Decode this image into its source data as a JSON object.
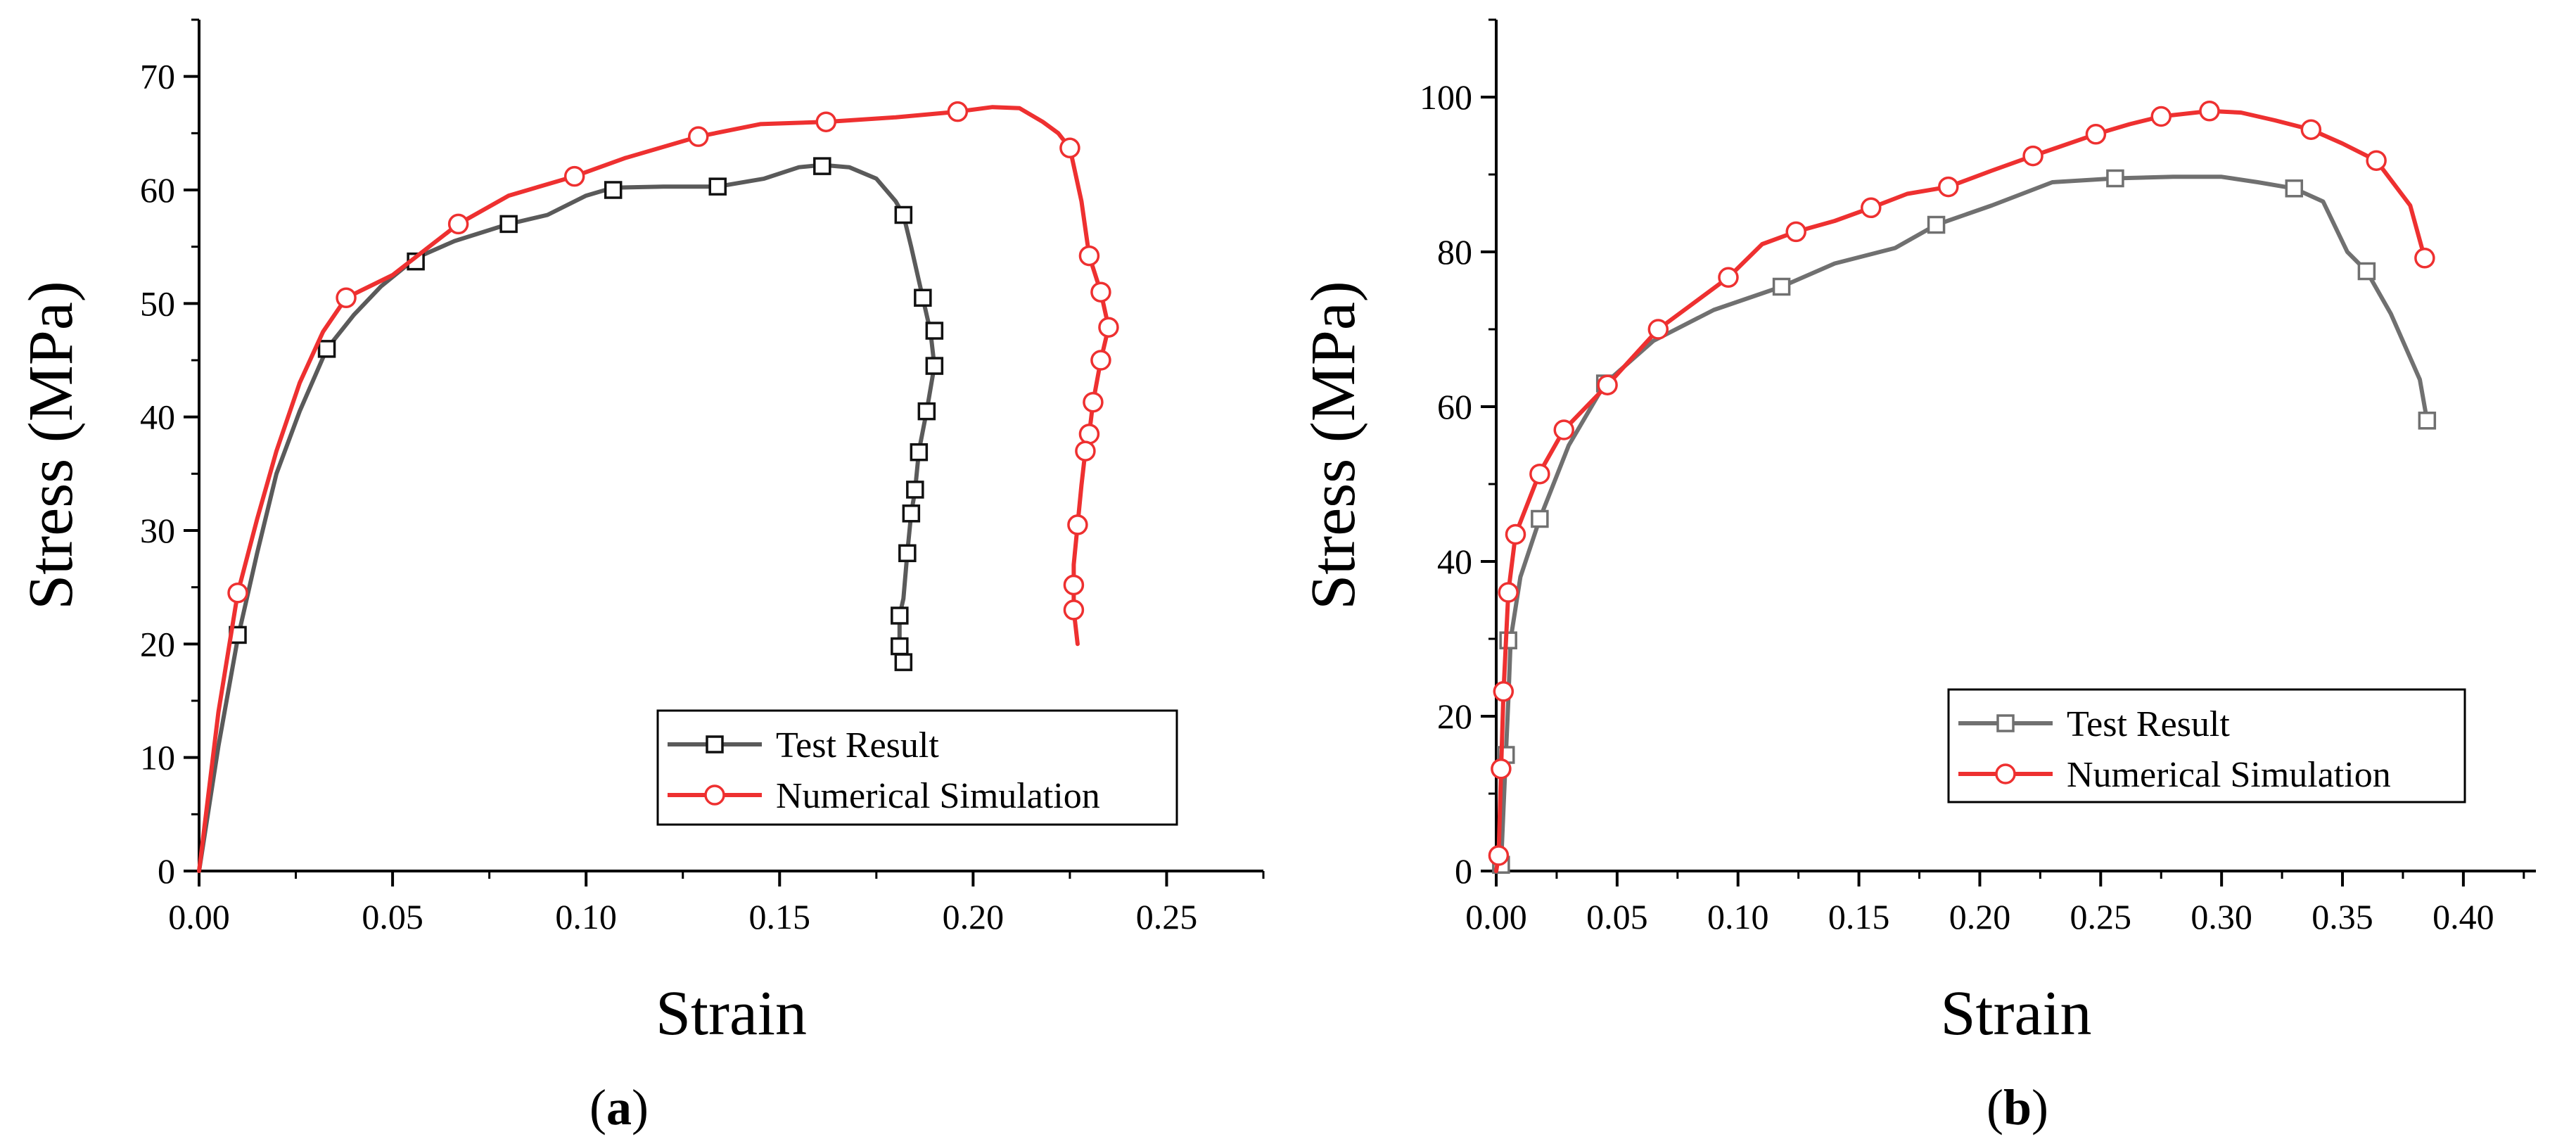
{
  "chart_data": [
    {
      "type": "line",
      "panel_label": "a",
      "title": "",
      "xlabel": "Strain",
      "ylabel": "Stress (MPa)",
      "xlim": [
        0,
        0.275
      ],
      "ylim": [
        0,
        75
      ],
      "xticks": [
        0.0,
        0.05,
        0.1,
        0.15,
        0.2,
        0.25
      ],
      "xtick_labels": [
        "0.00",
        "0.05",
        "0.10",
        "0.15",
        "0.20",
        "0.25"
      ],
      "yticks": [
        0,
        10,
        20,
        30,
        40,
        50,
        60,
        70
      ],
      "ytick_labels": [
        "0",
        "10",
        "20",
        "30",
        "40",
        "50",
        "60",
        "70"
      ],
      "grid": false,
      "legend_position": "bottom-right",
      "series": [
        {
          "name": "Test Result",
          "color": "#5a5a5a",
          "marker": "square",
          "line": [
            [
              0,
              0
            ],
            [
              0.005,
              11
            ],
            [
              0.01,
              20.5
            ],
            [
              0.015,
              28
            ],
            [
              0.02,
              35
            ],
            [
              0.026,
              40.5
            ],
            [
              0.033,
              46
            ],
            [
              0.04,
              49
            ],
            [
              0.047,
              51.5
            ],
            [
              0.056,
              54
            ],
            [
              0.066,
              55.5
            ],
            [
              0.08,
              57
            ],
            [
              0.09,
              57.8
            ],
            [
              0.1,
              59.5
            ],
            [
              0.107,
              60.2
            ],
            [
              0.12,
              60.3
            ],
            [
              0.134,
              60.3
            ],
            [
              0.146,
              61
            ],
            [
              0.155,
              62
            ],
            [
              0.161,
              62.2
            ],
            [
              0.168,
              62
            ],
            [
              0.175,
              61
            ],
            [
              0.18,
              59
            ],
            [
              0.182,
              57.8
            ],
            [
              0.184,
              55
            ],
            [
              0.187,
              50.5
            ],
            [
              0.189,
              47.5
            ],
            [
              0.19,
              44.5
            ],
            [
              0.188,
              40.5
            ],
            [
              0.186,
              37
            ],
            [
              0.185,
              33.5
            ],
            [
              0.184,
              31.5
            ],
            [
              0.183,
              28
            ],
            [
              0.182,
              24
            ],
            [
              0.181,
              22.5
            ],
            [
              0.181,
              19.8
            ],
            [
              0.182,
              18.2
            ]
          ],
          "markers": [
            [
              0.01,
              20.8
            ],
            [
              0.033,
              46
            ],
            [
              0.056,
              53.7
            ],
            [
              0.08,
              57
            ],
            [
              0.107,
              60
            ],
            [
              0.134,
              60.3
            ],
            [
              0.161,
              62.1
            ],
            [
              0.182,
              57.8
            ],
            [
              0.187,
              50.5
            ],
            [
              0.19,
              47.6
            ],
            [
              0.19,
              44.5
            ],
            [
              0.188,
              40.5
            ],
            [
              0.186,
              36.9
            ],
            [
              0.185,
              33.6
            ],
            [
              0.184,
              31.5
            ],
            [
              0.183,
              28
            ],
            [
              0.181,
              22.5
            ],
            [
              0.181,
              19.8
            ],
            [
              0.182,
              18.4
            ]
          ]
        },
        {
          "name": "Numerical Simulation",
          "color": "#ee3030",
          "marker": "circle",
          "line": [
            [
              0,
              0
            ],
            [
              0.005,
              14
            ],
            [
              0.01,
              24.5
            ],
            [
              0.015,
              31
            ],
            [
              0.02,
              37
            ],
            [
              0.026,
              43
            ],
            [
              0.032,
              47.5
            ],
            [
              0.038,
              50.5
            ],
            [
              0.05,
              52.5
            ],
            [
              0.067,
              57
            ],
            [
              0.08,
              59.5
            ],
            [
              0.097,
              61.2
            ],
            [
              0.11,
              62.8
            ],
            [
              0.129,
              64.7
            ],
            [
              0.145,
              65.8
            ],
            [
              0.162,
              66
            ],
            [
              0.18,
              66.4
            ],
            [
              0.196,
              66.9
            ],
            [
              0.205,
              67.3
            ],
            [
              0.212,
              67.2
            ],
            [
              0.218,
              66
            ],
            [
              0.222,
              65
            ],
            [
              0.225,
              63.7
            ],
            [
              0.228,
              59
            ],
            [
              0.23,
              54.2
            ],
            [
              0.233,
              51
            ],
            [
              0.235,
              47.9
            ],
            [
              0.233,
              45
            ],
            [
              0.231,
              41.3
            ],
            [
              0.23,
              38.5
            ],
            [
              0.229,
              37
            ],
            [
              0.228,
              34
            ],
            [
              0.227,
              30.5
            ],
            [
              0.226,
              27
            ],
            [
              0.226,
              25.2
            ],
            [
              0.226,
              23
            ],
            [
              0.227,
              20
            ]
          ],
          "markers": [
            [
              0.01,
              24.5
            ],
            [
              0.038,
              50.5
            ],
            [
              0.067,
              57
            ],
            [
              0.097,
              61.2
            ],
            [
              0.129,
              64.7
            ],
            [
              0.162,
              66
            ],
            [
              0.196,
              66.9
            ],
            [
              0.225,
              63.7
            ],
            [
              0.23,
              54.2
            ],
            [
              0.233,
              51
            ],
            [
              0.235,
              47.9
            ],
            [
              0.233,
              45
            ],
            [
              0.231,
              41.3
            ],
            [
              0.23,
              38.5
            ],
            [
              0.229,
              37
            ],
            [
              0.227,
              30.5
            ],
            [
              0.226,
              25.2
            ],
            [
              0.226,
              23
            ]
          ]
        }
      ]
    },
    {
      "type": "line",
      "panel_label": "b",
      "title": "",
      "xlabel": "Strain",
      "ylabel": "Stress (MPa)",
      "xlim": [
        0,
        0.43
      ],
      "ylim": [
        0,
        110
      ],
      "xticks": [
        0.0,
        0.05,
        0.1,
        0.15,
        0.2,
        0.25,
        0.3,
        0.35,
        0.4
      ],
      "xtick_labels": [
        "0.00",
        "0.05",
        "0.10",
        "0.15",
        "0.20",
        "0.25",
        "0.30",
        "0.35",
        "0.40"
      ],
      "yticks": [
        0,
        20,
        40,
        60,
        80,
        100
      ],
      "ytick_labels": [
        "0",
        "20",
        "40",
        "60",
        "80",
        "100"
      ],
      "grid": false,
      "legend_position": "bottom-right",
      "series": [
        {
          "name": "Test Result",
          "color": "#707070",
          "marker": "square",
          "line": [
            [
              0.001,
              0
            ],
            [
              0.002,
              0.8
            ],
            [
              0.003,
              8
            ],
            [
              0.004,
              15
            ],
            [
              0.005,
              22
            ],
            [
              0.006,
              30
            ],
            [
              0.01,
              38
            ],
            [
              0.018,
              45.5
            ],
            [
              0.03,
              55
            ],
            [
              0.045,
              63
            ],
            [
              0.065,
              68.5
            ],
            [
              0.09,
              72.5
            ],
            [
              0.118,
              75.5
            ],
            [
              0.14,
              78.5
            ],
            [
              0.165,
              80.5
            ],
            [
              0.182,
              83.5
            ],
            [
              0.205,
              86
            ],
            [
              0.23,
              89
            ],
            [
              0.256,
              89.5
            ],
            [
              0.28,
              89.7
            ],
            [
              0.3,
              89.7
            ],
            [
              0.315,
              89
            ],
            [
              0.33,
              88.2
            ],
            [
              0.342,
              86.5
            ],
            [
              0.352,
              80
            ],
            [
              0.36,
              77.5
            ],
            [
              0.37,
              72
            ],
            [
              0.382,
              63.5
            ],
            [
              0.385,
              58.2
            ]
          ],
          "markers": [
            [
              0.002,
              0.8
            ],
            [
              0.004,
              15
            ],
            [
              0.005,
              29.8
            ],
            [
              0.018,
              45.5
            ],
            [
              0.045,
              63
            ],
            [
              0.118,
              75.5
            ],
            [
              0.182,
              83.5
            ],
            [
              0.256,
              89.5
            ],
            [
              0.33,
              88.2
            ],
            [
              0.36,
              77.5
            ],
            [
              0.385,
              58.2
            ]
          ]
        },
        {
          "name": "Numerical Simulation",
          "color": "#ee3030",
          "marker": "circle",
          "line": [
            [
              0,
              0
            ],
            [
              0.001,
              2
            ],
            [
              0.002,
              13
            ],
            [
              0.003,
              23
            ],
            [
              0.005,
              36
            ],
            [
              0.008,
              43.5
            ],
            [
              0.018,
              51.5
            ],
            [
              0.028,
              57
            ],
            [
              0.046,
              62.8
            ],
            [
              0.067,
              70
            ],
            [
              0.08,
              73
            ],
            [
              0.096,
              76.7
            ],
            [
              0.11,
              81
            ],
            [
              0.124,
              82.6
            ],
            [
              0.14,
              84
            ],
            [
              0.155,
              85.7
            ],
            [
              0.17,
              87.5
            ],
            [
              0.187,
              88.4
            ],
            [
              0.205,
              90.5
            ],
            [
              0.222,
              92.4
            ],
            [
              0.248,
              95.2
            ],
            [
              0.262,
              96.5
            ],
            [
              0.275,
              97.5
            ],
            [
              0.295,
              98.2
            ],
            [
              0.308,
              98
            ],
            [
              0.322,
              97
            ],
            [
              0.337,
              95.8
            ],
            [
              0.35,
              94
            ],
            [
              0.364,
              91.8
            ],
            [
              0.378,
              86
            ],
            [
              0.384,
              79.2
            ]
          ],
          "markers": [
            [
              0.001,
              2
            ],
            [
              0.002,
              13.2
            ],
            [
              0.003,
              23.2
            ],
            [
              0.005,
              36
            ],
            [
              0.008,
              43.5
            ],
            [
              0.018,
              51.3
            ],
            [
              0.028,
              57
            ],
            [
              0.046,
              62.8
            ],
            [
              0.067,
              70
            ],
            [
              0.096,
              76.7
            ],
            [
              0.124,
              82.6
            ],
            [
              0.155,
              85.7
            ],
            [
              0.187,
              88.4
            ],
            [
              0.222,
              92.4
            ],
            [
              0.248,
              95.2
            ],
            [
              0.275,
              97.5
            ],
            [
              0.295,
              98.2
            ],
            [
              0.337,
              95.8
            ],
            [
              0.364,
              91.8
            ],
            [
              0.384,
              79.2
            ]
          ]
        }
      ]
    }
  ]
}
